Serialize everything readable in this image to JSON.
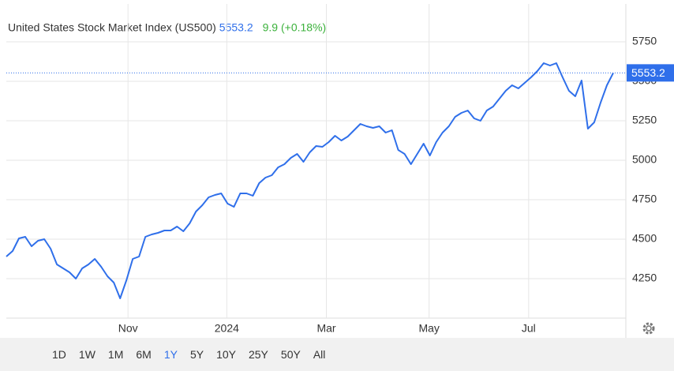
{
  "chart_data": {
    "type": "line",
    "title": "United States Stock Market Index (US500)",
    "price": 5553.2,
    "change": "9.9 (+0.18%)",
    "color": "#2f6fea",
    "values": [
      4390,
      4425,
      4505,
      4515,
      4455,
      4490,
      4500,
      4440,
      4340,
      4315,
      4290,
      4250,
      4315,
      4340,
      4375,
      4325,
      4265,
      4225,
      4125,
      4240,
      4375,
      4390,
      4515,
      4530,
      4540,
      4555,
      4555,
      4580,
      4550,
      4600,
      4675,
      4715,
      4765,
      4780,
      4790,
      4725,
      4705,
      4790,
      4790,
      4775,
      4855,
      4890,
      4905,
      4955,
      4975,
      5015,
      5040,
      4990,
      5050,
      5090,
      5085,
      5115,
      5155,
      5125,
      5150,
      5190,
      5230,
      5215,
      5205,
      5215,
      5175,
      5190,
      5065,
      5040,
      4975,
      5040,
      5105,
      5030,
      5115,
      5175,
      5215,
      5275,
      5300,
      5315,
      5265,
      5250,
      5315,
      5340,
      5390,
      5440,
      5475,
      5455,
      5490,
      5525,
      5565,
      5615,
      5600,
      5615,
      5525,
      5440,
      5405,
      5505,
      5200,
      5240,
      5365,
      5475,
      5553.2
    ],
    "xlim": [
      0,
      98
    ],
    "xticks": [
      {
        "value": 19.25,
        "label": "Nov"
      },
      {
        "value": 34.875,
        "label": "2024"
      },
      {
        "value": 50.625,
        "label": "Mar"
      },
      {
        "value": 66.875,
        "label": "May"
      },
      {
        "value": 82.625,
        "label": "Jul"
      }
    ],
    "ylim": [
      4000,
      5990
    ],
    "yticks": [
      4250,
      4500,
      4750,
      5000,
      5250,
      5500,
      5750
    ],
    "grid": true,
    "ranges": [
      "1D",
      "1W",
      "1M",
      "6M",
      "1Y",
      "5Y",
      "10Y",
      "25Y",
      "50Y",
      "All"
    ]
  }
}
